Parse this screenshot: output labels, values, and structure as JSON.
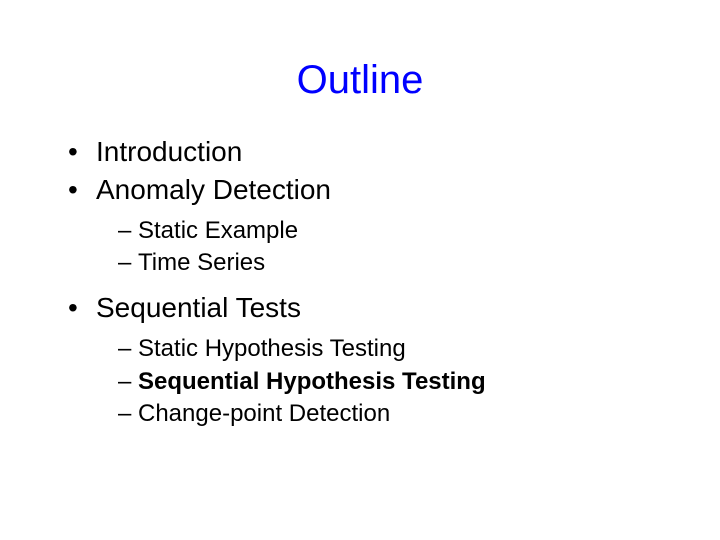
{
  "slide": {
    "title": "Outline",
    "title_color": "#0000ff",
    "title_fontsize": 40,
    "body_fontsize_l1": 28,
    "body_fontsize_l2": 24,
    "background_color": "#ffffff",
    "text_color": "#000000",
    "items": [
      {
        "label": "Introduction",
        "bold": false,
        "children": []
      },
      {
        "label": "Anomaly Detection",
        "bold": false,
        "children": [
          {
            "label": "Static Example",
            "bold": false
          },
          {
            "label": "Time Series",
            "bold": false
          }
        ]
      },
      {
        "label": "Sequential Tests",
        "bold": false,
        "children": [
          {
            "label": "Static Hypothesis Testing",
            "bold": false
          },
          {
            "label": "Sequential Hypothesis Testing",
            "bold": true
          },
          {
            "label": "Change-point Detection",
            "bold": false
          }
        ]
      }
    ]
  }
}
